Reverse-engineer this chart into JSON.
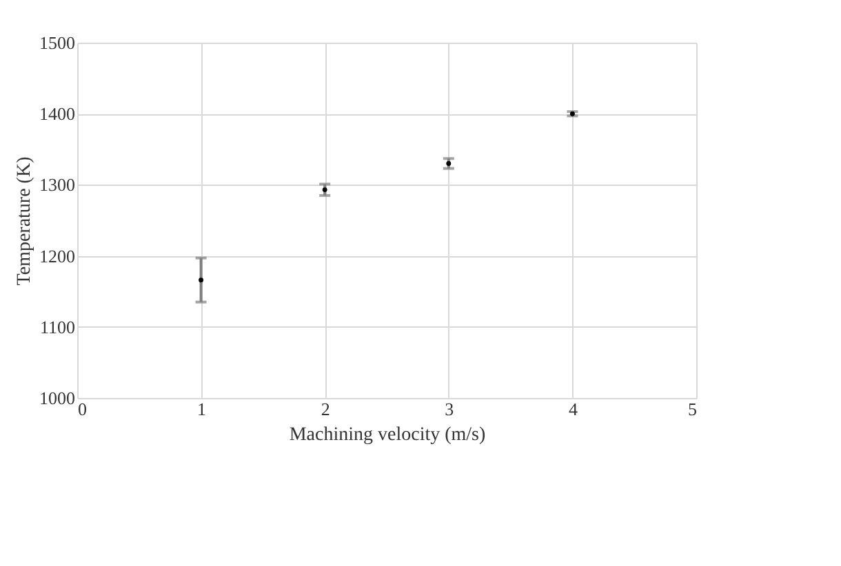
{
  "chart_data": {
    "type": "scatter",
    "xlabel": "Machining velocity (m/s)",
    "ylabel": "Temperature (K)",
    "x": [
      1,
      2,
      3,
      4
    ],
    "values": [
      1166,
      1293,
      1330,
      1400
    ],
    "errors": [
      31,
      8,
      7,
      3
    ],
    "color": "#000000",
    "marker": "circle",
    "xlim": [
      0,
      5
    ],
    "xticks": [
      0,
      1,
      2,
      3,
      4,
      5
    ],
    "ylim": [
      1000,
      1500
    ],
    "yticks": [
      1000,
      1100,
      1200,
      1300,
      1400,
      1500
    ],
    "grid": true
  }
}
